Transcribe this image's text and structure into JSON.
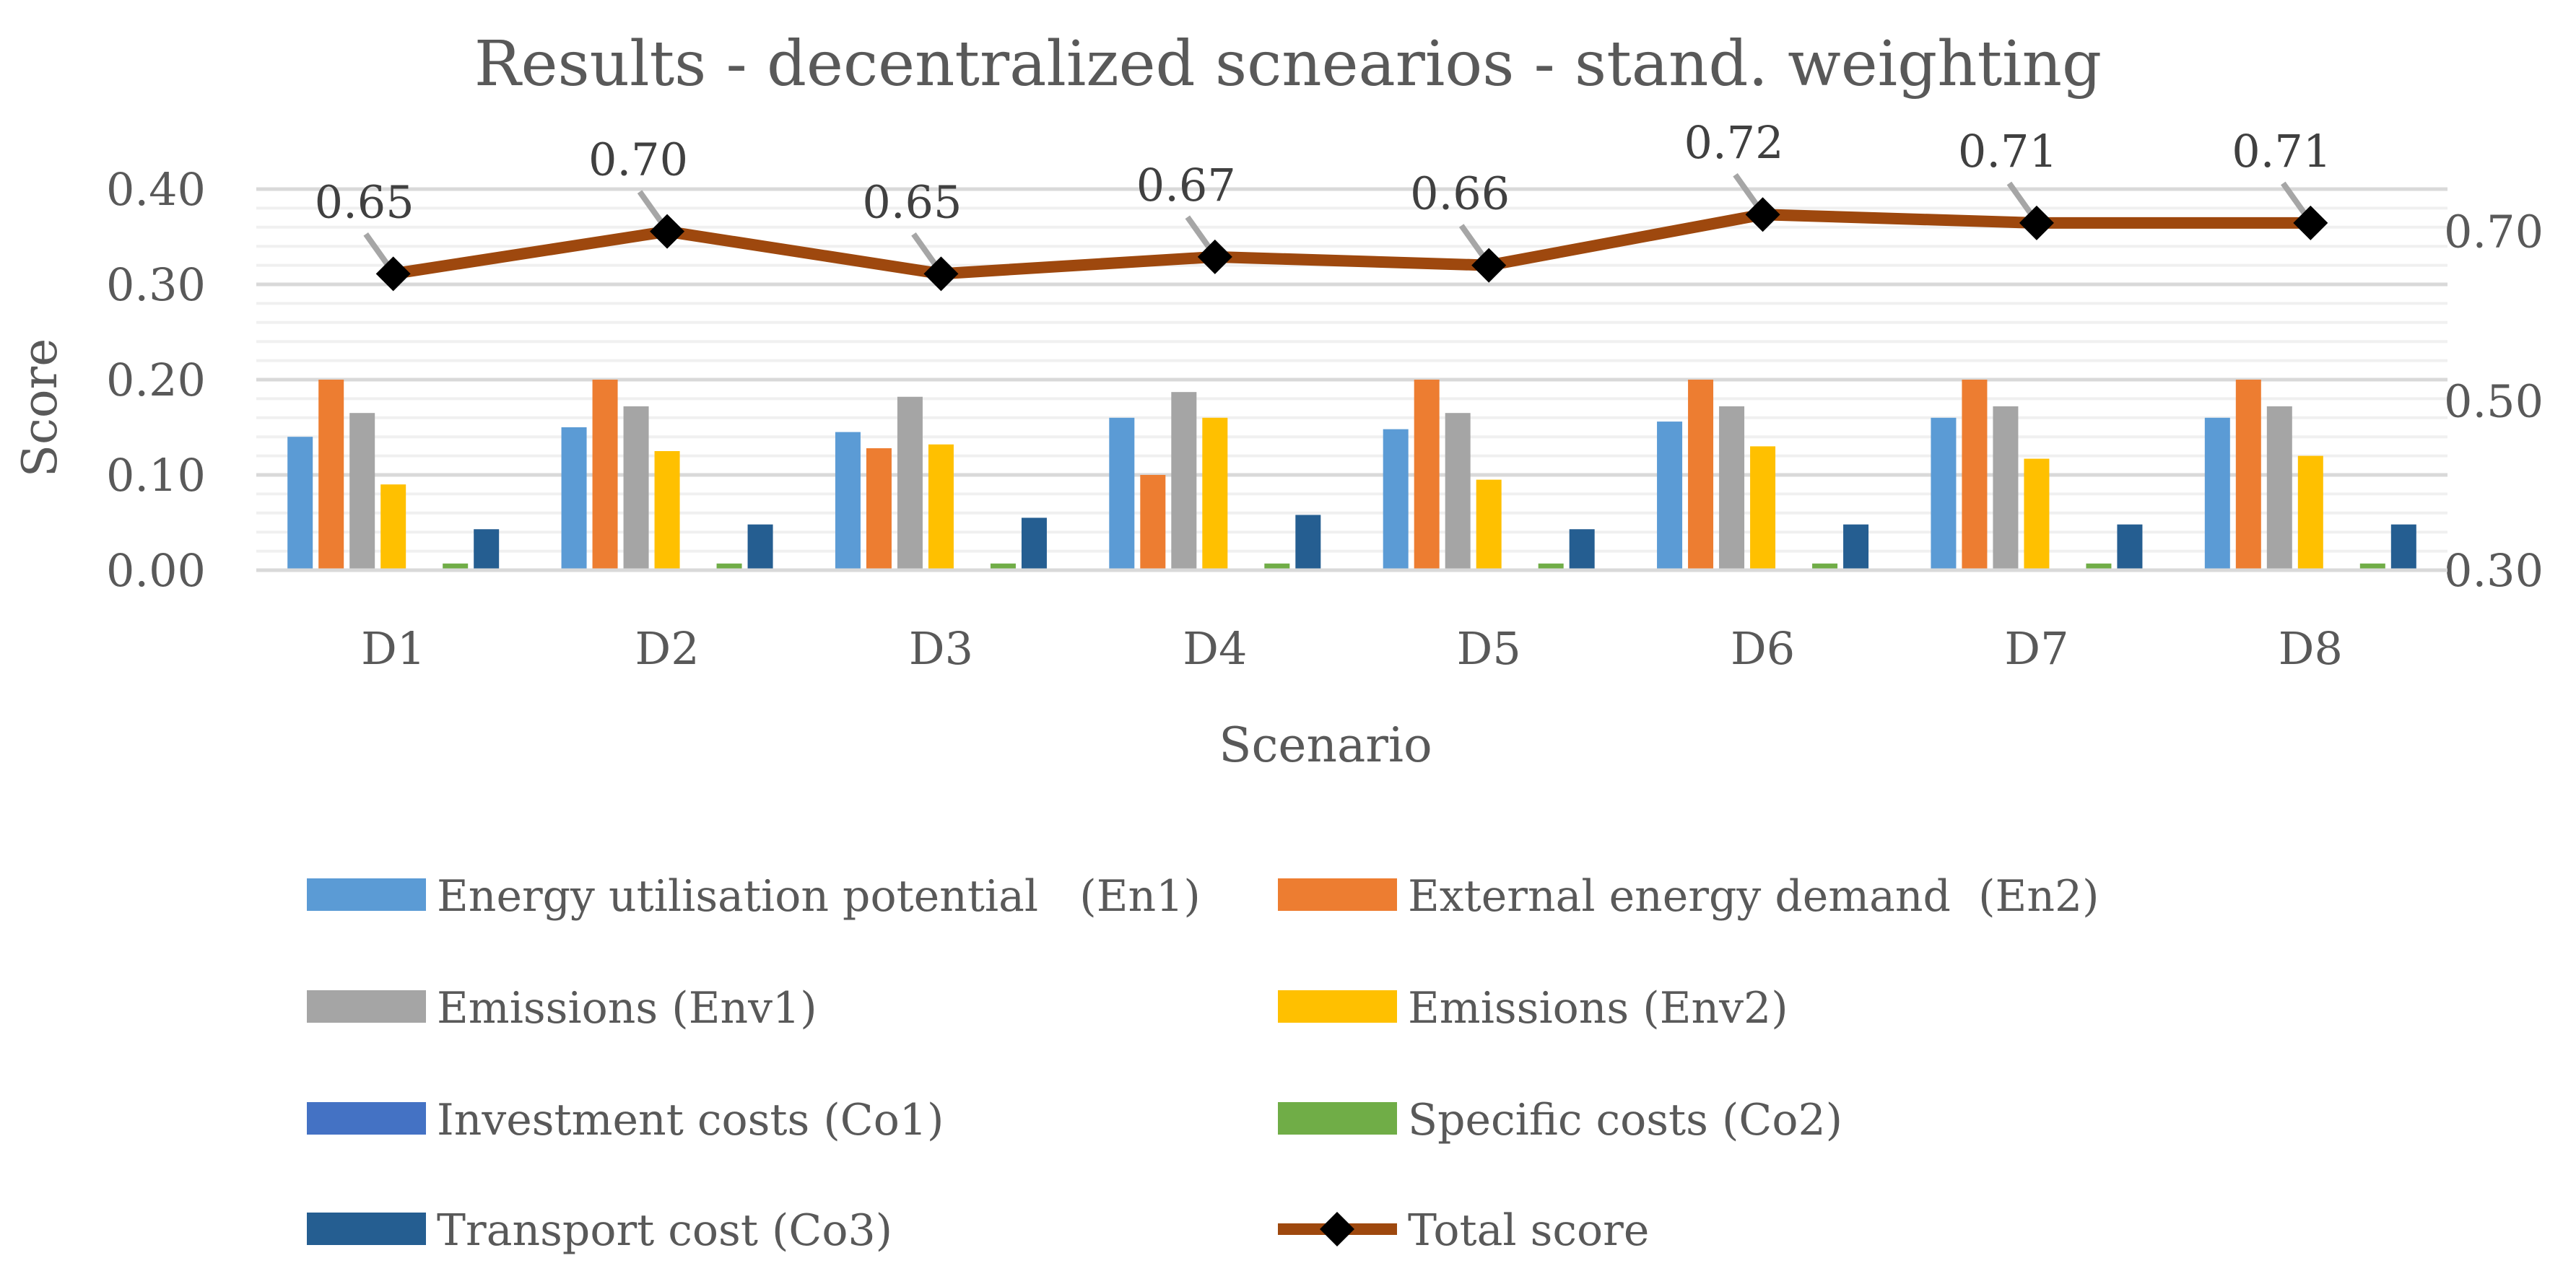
{
  "chart_data": {
    "type": "bar",
    "title": "Results - decentralized scnearios - stand. weighting",
    "xlabel": "Scenario",
    "ylabel": "Score",
    "categories": [
      "D1",
      "D2",
      "D3",
      "D4",
      "D5",
      "D6",
      "D7",
      "D8"
    ],
    "ylim": [
      0,
      0.4
    ],
    "y_ticks": [
      "0.00",
      "0.10",
      "0.20",
      "0.30",
      "0.40"
    ],
    "y2lim": [
      0.3,
      0.75
    ],
    "y2_ticks": [
      "0.30",
      "0.50",
      "0.70"
    ],
    "grid": true,
    "legend_position": "bottom",
    "series": [
      {
        "name": "Energy utilisation potential   (En1)",
        "type": "bar",
        "axis": "left",
        "color": "#5B9BD5",
        "values": [
          0.14,
          0.15,
          0.145,
          0.16,
          0.148,
          0.156,
          0.16,
          0.16
        ]
      },
      {
        "name": "External energy demand  (En2)",
        "type": "bar",
        "axis": "left",
        "color": "#ED7D31",
        "values": [
          0.2,
          0.2,
          0.128,
          0.1,
          0.2,
          0.2,
          0.2,
          0.2
        ]
      },
      {
        "name": "Emissions (Env1)",
        "type": "bar",
        "axis": "left",
        "color": "#A5A5A5",
        "values": [
          0.165,
          0.172,
          0.182,
          0.187,
          0.165,
          0.172,
          0.172,
          0.172
        ]
      },
      {
        "name": "Emissions (Env2)",
        "type": "bar",
        "axis": "left",
        "color": "#FFC000",
        "values": [
          0.09,
          0.125,
          0.132,
          0.16,
          0.095,
          0.13,
          0.117,
          0.12
        ]
      },
      {
        "name": "Investment costs (Co1)",
        "type": "bar",
        "axis": "left",
        "color": "#4472C4",
        "values": [
          0,
          0,
          0,
          0,
          0,
          0,
          0,
          0
        ]
      },
      {
        "name": "Specific costs (Co2)",
        "type": "bar",
        "axis": "left",
        "color": "#70AD47",
        "values": [
          0.007,
          0.007,
          0.007,
          0.007,
          0.007,
          0.007,
          0.007,
          0.007
        ]
      },
      {
        "name": "Transport cost (Co3)",
        "type": "bar",
        "axis": "left",
        "color": "#255E91",
        "values": [
          0.043,
          0.048,
          0.055,
          0.058,
          0.043,
          0.048,
          0.048,
          0.048
        ]
      },
      {
        "name": "Total score",
        "type": "line",
        "axis": "right",
        "color": "#9E480E",
        "marker_color": "#000000",
        "values": [
          0.65,
          0.7,
          0.65,
          0.67,
          0.66,
          0.72,
          0.71,
          0.71
        ],
        "labels": [
          "0.65",
          "0.70",
          "0.65",
          "0.67",
          "0.66",
          "0.72",
          "0.71",
          "0.71"
        ]
      }
    ]
  }
}
